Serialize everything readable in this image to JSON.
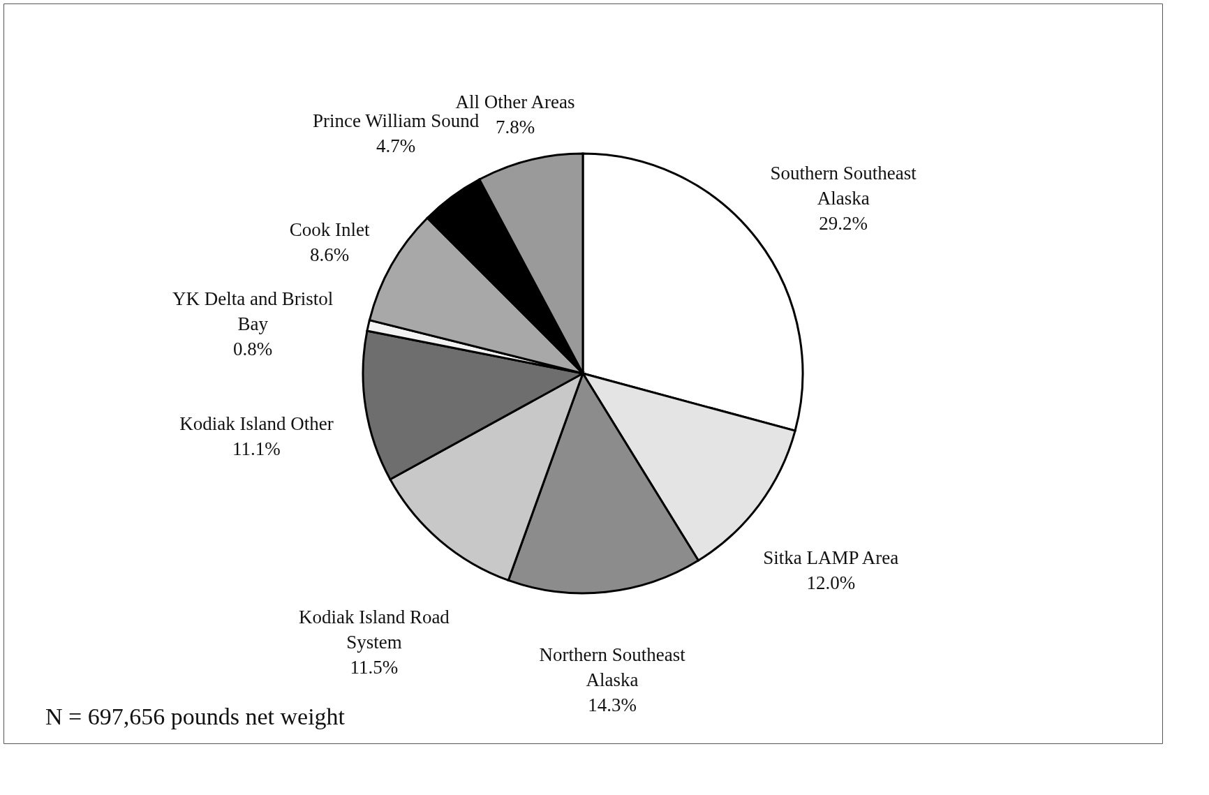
{
  "chart_data": {
    "type": "pie",
    "categories": [
      "Southern Southeast Alaska",
      "Sitka LAMP Area",
      "Northern Southeast Alaska",
      "Kodiak Island Road System",
      "Kodiak Island Other",
      "YK Delta and Bristol Bay",
      "Cook Inlet",
      "Prince William Sound",
      "All Other Areas"
    ],
    "values": [
      29.2,
      12.0,
      14.3,
      11.5,
      11.1,
      0.8,
      8.6,
      4.7,
      7.8
    ],
    "value_labels": [
      "29.2%",
      "12.0%",
      "14.3%",
      "11.5%",
      "11.1%",
      "0.8%",
      "8.6%",
      "4.7%",
      "7.8%"
    ],
    "colors": [
      "#ffffff",
      "#e4e4e4",
      "#8c8c8c",
      "#c8c8c8",
      "#6e6e6e",
      "#f2f2f2",
      "#a8a8a8",
      "#000000",
      "#9a9a9a"
    ],
    "annotations": [
      "N = 697,656 pounds net weight"
    ]
  }
}
